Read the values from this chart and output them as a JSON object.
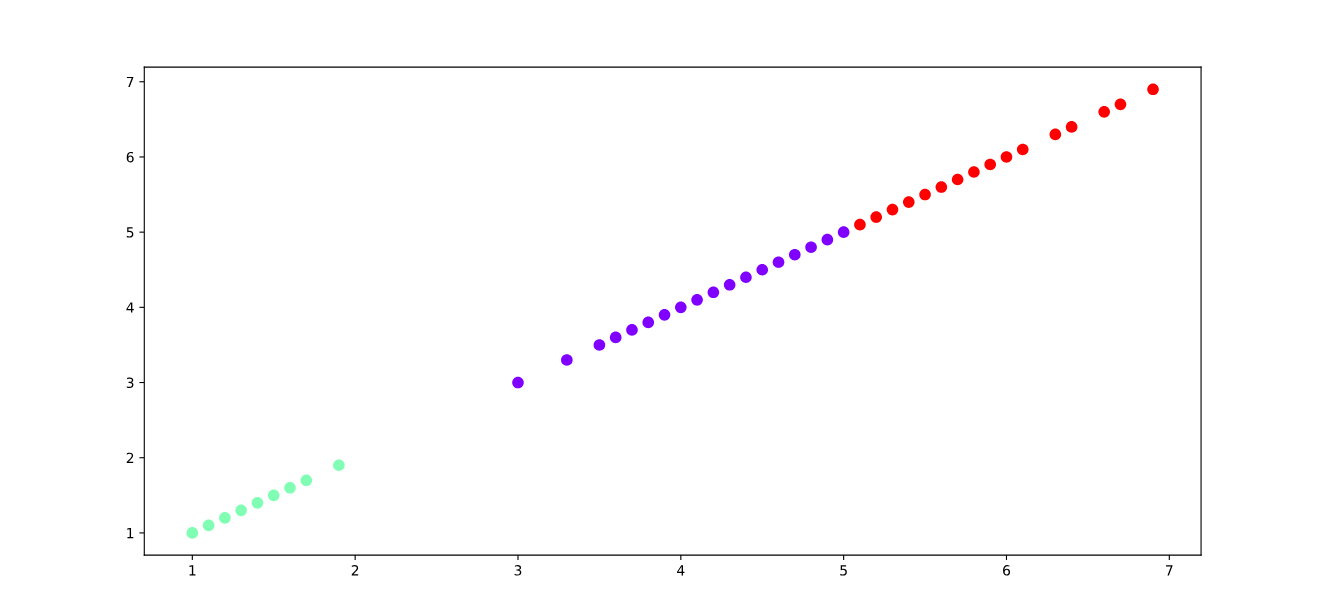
{
  "chart_data": {
    "type": "scatter",
    "marker": "circle",
    "grid": false,
    "xlim": [
      0.705,
      7.195
    ],
    "ylim": [
      0.705,
      7.195
    ],
    "xticks": [
      1,
      2,
      3,
      4,
      5,
      6,
      7
    ],
    "yticks": [
      1,
      2,
      3,
      4,
      5,
      6,
      7
    ],
    "series": [
      {
        "color": "#80ffb4",
        "x": [
          1.0,
          1.1,
          1.2,
          1.3,
          1.4,
          1.5,
          1.6,
          1.7,
          1.9
        ],
        "values": [
          1.0,
          1.1,
          1.2,
          1.3,
          1.4,
          1.5,
          1.6,
          1.7,
          1.9
        ]
      },
      {
        "color": "#8000ff",
        "x": [
          3.0,
          3.3,
          3.5,
          3.6,
          3.7,
          3.8,
          3.9,
          4.0,
          4.1,
          4.2,
          4.3,
          4.4,
          4.5,
          4.6,
          4.7,
          4.8,
          4.9,
          5.0
        ],
        "values": [
          3.0,
          3.3,
          3.5,
          3.6,
          3.7,
          3.8,
          3.9,
          4.0,
          4.1,
          4.2,
          4.3,
          4.4,
          4.5,
          4.6,
          4.7,
          4.8,
          4.9,
          5.0
        ]
      },
      {
        "color": "#ff0000",
        "x": [
          5.1,
          5.2,
          5.3,
          5.4,
          5.5,
          5.6,
          5.7,
          5.8,
          5.9,
          6.0,
          6.1,
          6.3,
          6.4,
          6.6,
          6.7,
          6.9
        ],
        "values": [
          5.1,
          5.2,
          5.3,
          5.4,
          5.5,
          5.6,
          5.7,
          5.8,
          5.9,
          6.0,
          6.1,
          6.3,
          6.4,
          6.6,
          6.7,
          6.9
        ]
      }
    ]
  }
}
